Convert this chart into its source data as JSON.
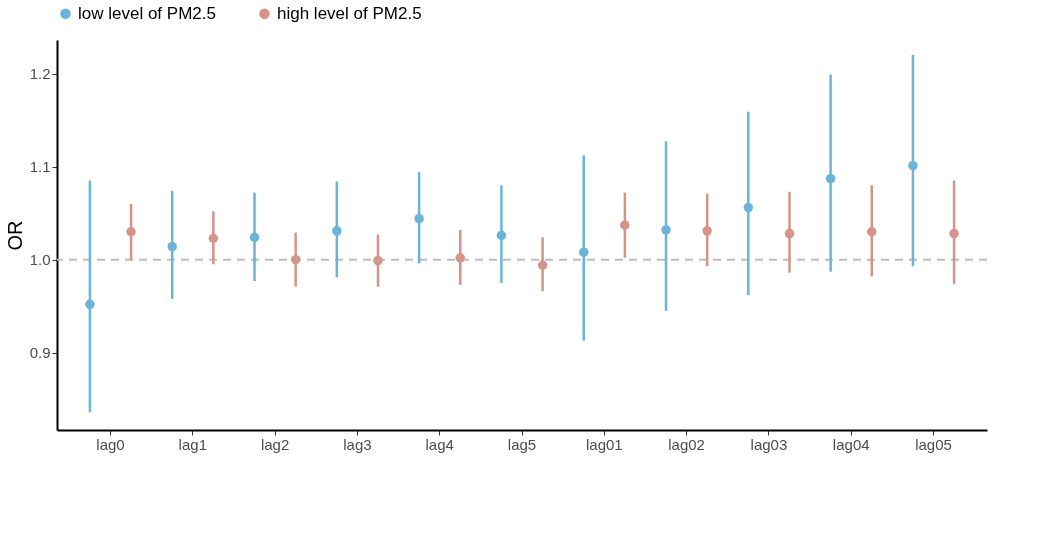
{
  "chart_data": {
    "type": "scatter",
    "ylabel": "OR",
    "categories": [
      "lag0",
      "lag1",
      "lag2",
      "lag3",
      "lag4",
      "lag5",
      "lag01",
      "lag02",
      "lag03",
      "lag04",
      "lag05"
    ],
    "series": [
      {
        "name": "low level of PM2.5",
        "color": "#6bb3d9",
        "values": [
          0.952,
          1.014,
          1.024,
          1.031,
          1.044,
          1.026,
          1.008,
          1.032,
          1.056,
          1.087,
          1.101
        ],
        "errors": [
          [
            0.836,
            1.085
          ],
          [
            0.958,
            1.074
          ],
          [
            0.977,
            1.072
          ],
          [
            0.981,
            1.084
          ],
          [
            0.996,
            1.094
          ],
          [
            0.975,
            1.08
          ],
          [
            0.913,
            1.112
          ],
          [
            0.945,
            1.127
          ],
          [
            0.962,
            1.159
          ],
          [
            0.987,
            1.199
          ],
          [
            0.993,
            1.22
          ]
        ]
      },
      {
        "name": "high level of PM2.5",
        "color": "#d4948a",
        "values": [
          1.03,
          1.023,
          1.0,
          0.999,
          1.002,
          0.994,
          1.037,
          1.031,
          1.028,
          1.03,
          1.028
        ],
        "errors": [
          [
            1.0,
            1.06
          ],
          [
            0.995,
            1.052
          ],
          [
            0.971,
            1.029
          ],
          [
            0.971,
            1.027
          ],
          [
            0.973,
            1.032
          ],
          [
            0.966,
            1.024
          ],
          [
            1.002,
            1.072
          ],
          [
            0.993,
            1.071
          ],
          [
            0.986,
            1.073
          ],
          [
            0.982,
            1.08
          ],
          [
            0.974,
            1.085
          ]
        ]
      }
    ],
    "ylim": [
      0.817,
      1.236
    ],
    "yticks": [
      {
        "value": 0.9,
        "label": "0.9"
      },
      {
        "value": 1.0,
        "label": "1.0"
      },
      {
        "value": 1.1,
        "label": "1.1"
      },
      {
        "value": 1.2,
        "label": "1.2"
      }
    ],
    "ref_lines": [
      {
        "axis": "y",
        "value": 1.0,
        "color": "#bdbdbd",
        "line_style": "dashed"
      }
    ],
    "grid": false,
    "legend": "top",
    "marker": "circle"
  }
}
